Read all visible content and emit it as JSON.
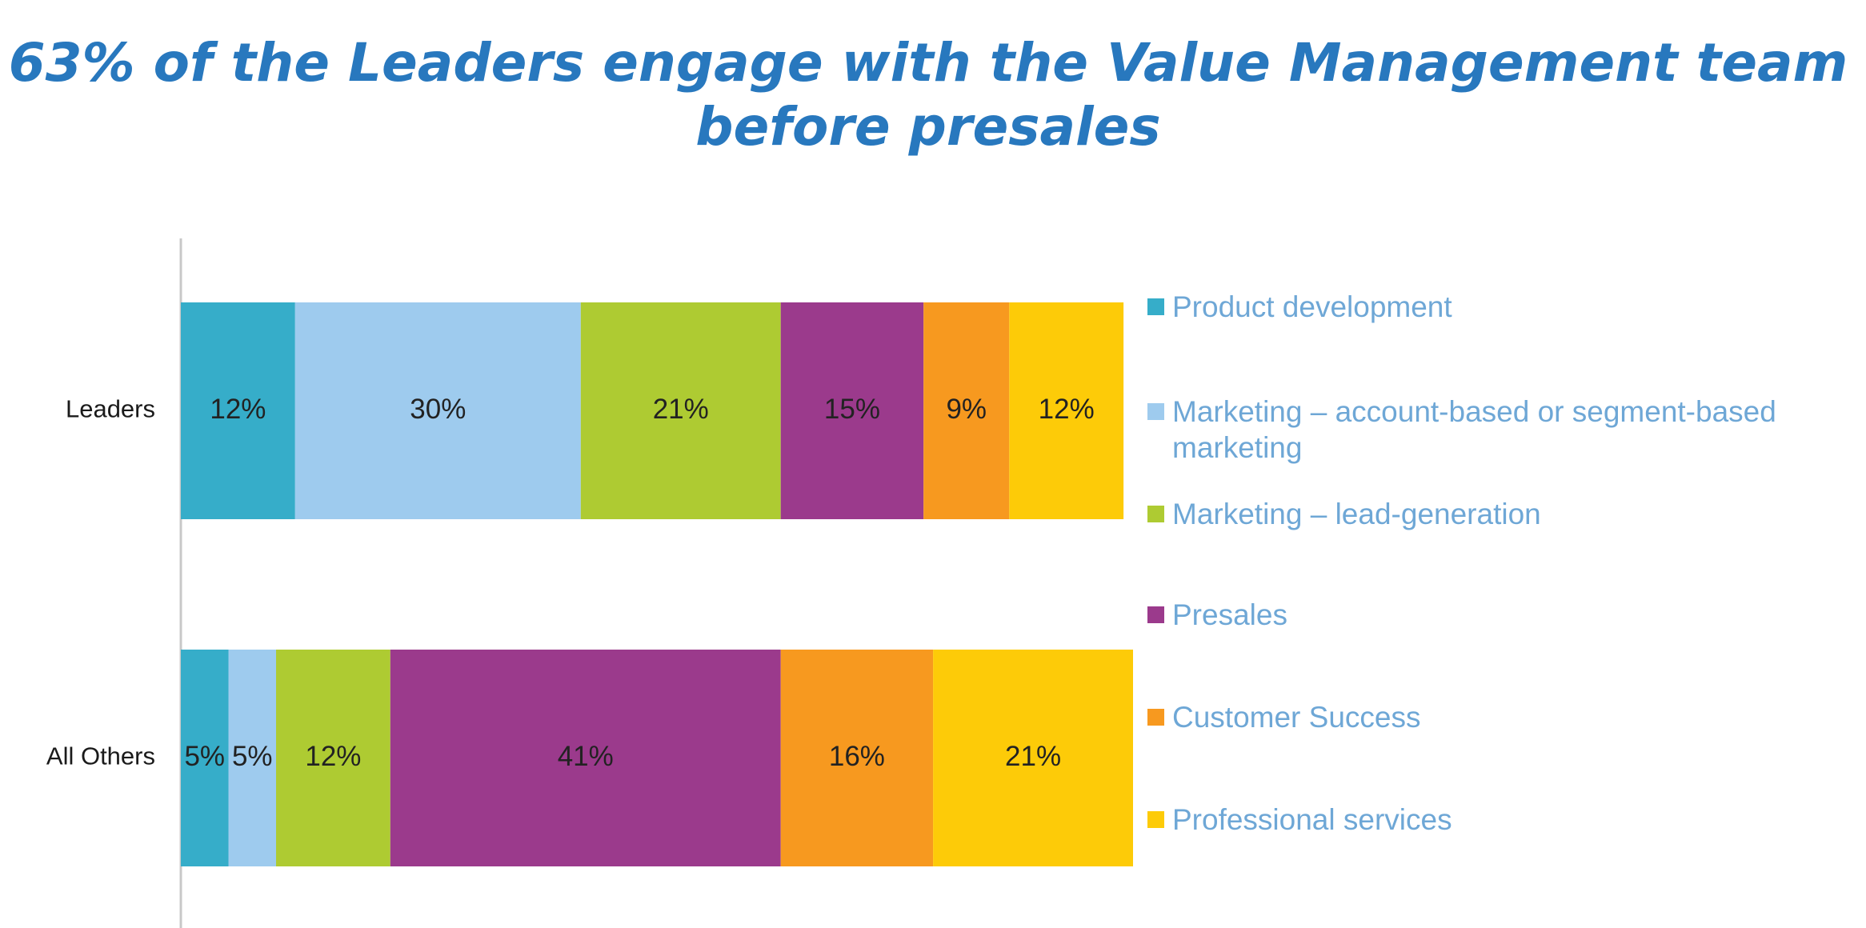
{
  "chart_data": {
    "type": "stacked_bar_horizontal",
    "title": [
      "63% of the Leaders engage with the Value Management team",
      "before presales"
    ],
    "categories": [
      "Leaders",
      "All Others"
    ],
    "xlim": [
      0,
      100
    ],
    "series": [
      {
        "name": "Product development",
        "color": "#36adc9",
        "values": [
          12,
          5
        ],
        "value_labels": [
          "12%",
          "5%"
        ]
      },
      {
        "name": "Marketing – account-based or segment-based marketing",
        "color": "#9ecbee",
        "values": [
          30,
          5
        ],
        "value_labels": [
          "30%",
          "5%"
        ]
      },
      {
        "name": "Marketing – lead-generation",
        "color": "#aecb32",
        "values": [
          21,
          12
        ],
        "value_labels": [
          "21%",
          "12%"
        ]
      },
      {
        "name": "Presales",
        "color": "#9b3a8c",
        "values": [
          15,
          41
        ],
        "value_labels": [
          "15%",
          "41%"
        ]
      },
      {
        "name": "Customer Success",
        "color": "#f7991f",
        "values": [
          9,
          16
        ],
        "value_labels": [
          "9%",
          "16%"
        ]
      },
      {
        "name": "Professional services",
        "color": "#fdcb08",
        "values": [
          12,
          21
        ],
        "value_labels": [
          "12%",
          "21%"
        ]
      }
    ]
  }
}
